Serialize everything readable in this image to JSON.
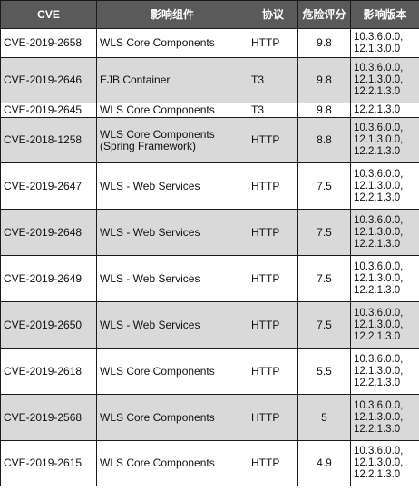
{
  "table": {
    "headers": {
      "cve": "CVE",
      "component": "影响组件",
      "protocol": "协议",
      "score": "危险评分",
      "versions": "影响版本"
    },
    "rows": [
      {
        "cve": "CVE-2019-2658",
        "component": "WLS Core Components",
        "protocol": "HTTP",
        "score": "9.8",
        "versions": "10.3.6.0.0,\n12.1.3.0.0"
      },
      {
        "cve": "CVE-2019-2646",
        "component": "EJB Container",
        "protocol": "T3",
        "score": "9.8",
        "versions": "10.3.6.0.0,\n12.1.3.0.0,\n12.2.1.3.0"
      },
      {
        "cve": "CVE-2019-2645",
        "component": "WLS Core Components",
        "protocol": "T3",
        "score": "9.8",
        "versions": "12.2.1.3.0"
      },
      {
        "cve": "CVE-2018-1258",
        "component": "WLS Core Components\n(Spring Framework)",
        "protocol": "HTTP",
        "score": "8.8",
        "versions": "10.3.6.0.0,\n12.1.3.0.0,\n12.2.1.3.0"
      },
      {
        "cve": "CVE-2019-2647",
        "component": "WLS - Web Services",
        "protocol": "HTTP",
        "score": "7.5",
        "versions": "10.3.6.0.0,\n12.1.3.0.0,\n12.2.1.3.0"
      },
      {
        "cve": "CVE-2019-2648",
        "component": "WLS - Web Services",
        "protocol": "HTTP",
        "score": "7.5",
        "versions": "10.3.6.0.0,\n12.1.3.0.0,\n12.2.1.3.0"
      },
      {
        "cve": "CVE-2019-2649",
        "component": "WLS - Web Services",
        "protocol": "HTTP",
        "score": "7.5",
        "versions": "10.3.6.0.0,\n12.1.3.0.0,\n12.2.1.3.0"
      },
      {
        "cve": "CVE-2019-2650",
        "component": "WLS - Web Services",
        "protocol": "HTTP",
        "score": "7.5",
        "versions": "10.3.6.0.0,\n12.1.3.0.0,\n12.2.1.3.0"
      },
      {
        "cve": "CVE-2019-2618",
        "component": "WLS Core Components",
        "protocol": "HTTP",
        "score": "5.5",
        "versions": "10.3.6.0.0,\n12.1.3.0.0,\n12.2.1.3.0"
      },
      {
        "cve": "CVE-2019-2568",
        "component": "WLS Core Components",
        "protocol": "HTTP",
        "score": "5",
        "versions": "10.3.6.0.0,\n12.1.3.0.0,\n12.2.1.3.0"
      },
      {
        "cve": "CVE-2019-2615",
        "component": "WLS Core Components",
        "protocol": "HTTP",
        "score": "4.9",
        "versions": "10.3.6.0.0,\n12.1.3.0.0,\n12.2.1.3.0"
      }
    ]
  },
  "colors": {
    "header_bg": "#5a5a5a",
    "header_text": "#ffffff",
    "alt_row_bg": "#d9d9d9",
    "row_bg": "#ffffff",
    "border": "#1a1a1a"
  }
}
